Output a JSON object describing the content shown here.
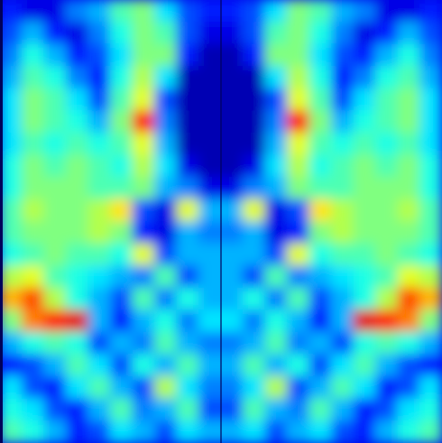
{
  "chart_data": {
    "type": "heatmap",
    "tick_labels": false,
    "zlim": [
      0,
      1
    ],
    "cells": [
      [
        0.15,
        0.1,
        0.1,
        0.25,
        0.3,
        0.45,
        0.5,
        0.35,
        0.2,
        0.15,
        0.15,
        0.2,
        0.35,
        0.5,
        0.45,
        0.3,
        0.25,
        0.1,
        0.1,
        0.15
      ],
      [
        0.2,
        0.3,
        0.15,
        0.1,
        0.25,
        0.4,
        0.5,
        0.45,
        0.2,
        0.1,
        0.1,
        0.2,
        0.45,
        0.5,
        0.4,
        0.25,
        0.1,
        0.15,
        0.3,
        0.2
      ],
      [
        0.25,
        0.4,
        0.3,
        0.15,
        0.2,
        0.35,
        0.5,
        0.5,
        0.15,
        0.05,
        0.05,
        0.15,
        0.5,
        0.5,
        0.35,
        0.2,
        0.15,
        0.3,
        0.4,
        0.25
      ],
      [
        0.3,
        0.45,
        0.4,
        0.25,
        0.15,
        0.4,
        0.55,
        0.35,
        0.05,
        0.05,
        0.05,
        0.05,
        0.35,
        0.55,
        0.4,
        0.15,
        0.25,
        0.4,
        0.45,
        0.3
      ],
      [
        0.35,
        0.5,
        0.45,
        0.35,
        0.2,
        0.45,
        0.6,
        0.2,
        0.05,
        0.05,
        0.05,
        0.05,
        0.2,
        0.6,
        0.45,
        0.2,
        0.35,
        0.45,
        0.5,
        0.35
      ],
      [
        0.35,
        0.5,
        0.45,
        0.4,
        0.3,
        0.5,
        0.85,
        0.25,
        0.05,
        0.05,
        0.05,
        0.05,
        0.25,
        0.85,
        0.5,
        0.3,
        0.4,
        0.45,
        0.5,
        0.35
      ],
      [
        0.35,
        0.45,
        0.4,
        0.45,
        0.4,
        0.45,
        0.6,
        0.3,
        0.05,
        0.05,
        0.05,
        0.05,
        0.3,
        0.6,
        0.45,
        0.4,
        0.45,
        0.4,
        0.45,
        0.35
      ],
      [
        0.4,
        0.5,
        0.45,
        0.5,
        0.45,
        0.4,
        0.55,
        0.35,
        0.1,
        0.05,
        0.05,
        0.1,
        0.35,
        0.55,
        0.4,
        0.45,
        0.5,
        0.45,
        0.5,
        0.4
      ],
      [
        0.4,
        0.5,
        0.5,
        0.5,
        0.45,
        0.45,
        0.5,
        0.3,
        0.25,
        0.1,
        0.1,
        0.25,
        0.3,
        0.5,
        0.45,
        0.45,
        0.5,
        0.5,
        0.5,
        0.4
      ],
      [
        0.45,
        0.55,
        0.5,
        0.5,
        0.55,
        0.65,
        0.2,
        0.1,
        0.6,
        0.3,
        0.3,
        0.6,
        0.1,
        0.2,
        0.65,
        0.55,
        0.5,
        0.5,
        0.55,
        0.45
      ],
      [
        0.45,
        0.5,
        0.5,
        0.5,
        0.55,
        0.5,
        0.15,
        0.1,
        0.3,
        0.25,
        0.25,
        0.3,
        0.1,
        0.15,
        0.5,
        0.55,
        0.5,
        0.5,
        0.5,
        0.45
      ],
      [
        0.4,
        0.45,
        0.5,
        0.45,
        0.45,
        0.4,
        0.6,
        0.2,
        0.3,
        0.3,
        0.3,
        0.3,
        0.2,
        0.6,
        0.4,
        0.45,
        0.45,
        0.5,
        0.45,
        0.4
      ],
      [
        0.55,
        0.6,
        0.45,
        0.4,
        0.35,
        0.3,
        0.25,
        0.45,
        0.2,
        0.3,
        0.3,
        0.2,
        0.45,
        0.25,
        0.3,
        0.35,
        0.4,
        0.45,
        0.6,
        0.55
      ],
      [
        0.7,
        0.8,
        0.55,
        0.4,
        0.3,
        0.2,
        0.45,
        0.25,
        0.4,
        0.3,
        0.3,
        0.4,
        0.25,
        0.45,
        0.2,
        0.3,
        0.4,
        0.55,
        0.8,
        0.7
      ],
      [
        0.5,
        0.75,
        0.85,
        0.9,
        0.3,
        0.15,
        0.3,
        0.4,
        0.25,
        0.35,
        0.35,
        0.25,
        0.4,
        0.3,
        0.15,
        0.3,
        0.9,
        0.85,
        0.75,
        0.5
      ],
      [
        0.3,
        0.4,
        0.45,
        0.4,
        0.2,
        0.3,
        0.25,
        0.45,
        0.3,
        0.25,
        0.25,
        0.3,
        0.45,
        0.25,
        0.3,
        0.2,
        0.4,
        0.45,
        0.4,
        0.3
      ],
      [
        0.15,
        0.2,
        0.3,
        0.45,
        0.35,
        0.2,
        0.4,
        0.3,
        0.45,
        0.3,
        0.3,
        0.45,
        0.3,
        0.4,
        0.2,
        0.35,
        0.45,
        0.3,
        0.2,
        0.15
      ],
      [
        0.35,
        0.2,
        0.15,
        0.35,
        0.45,
        0.3,
        0.2,
        0.55,
        0.35,
        0.25,
        0.25,
        0.35,
        0.55,
        0.2,
        0.3,
        0.45,
        0.35,
        0.15,
        0.2,
        0.35
      ],
      [
        0.4,
        0.35,
        0.2,
        0.15,
        0.3,
        0.45,
        0.25,
        0.3,
        0.45,
        0.2,
        0.2,
        0.45,
        0.3,
        0.25,
        0.45,
        0.3,
        0.15,
        0.2,
        0.35,
        0.4
      ],
      [
        0.45,
        0.4,
        0.3,
        0.15,
        0.2,
        0.35,
        0.3,
        0.2,
        0.35,
        0.3,
        0.3,
        0.35,
        0.2,
        0.3,
        0.35,
        0.2,
        0.15,
        0.3,
        0.4,
        0.45
      ]
    ]
  }
}
